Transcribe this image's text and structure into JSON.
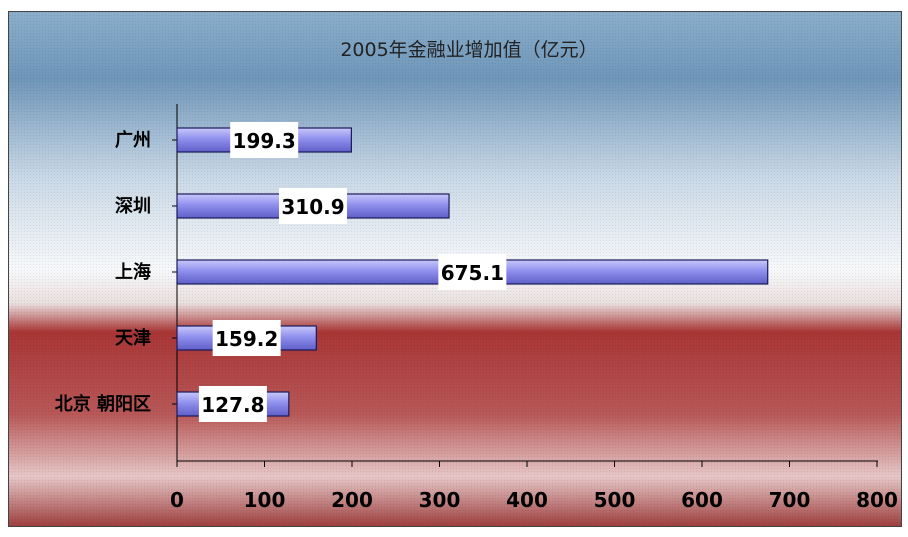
{
  "chart_data": {
    "type": "bar",
    "orientation": "horizontal",
    "title": "2005年金融业增加值（亿元）",
    "categories": [
      "广州",
      "深圳",
      "上海",
      "天津",
      "北京 朝阳区"
    ],
    "values": [
      199.3,
      310.9,
      675.1,
      159.2,
      127.8
    ],
    "data_labels": [
      "199.3",
      "310.9",
      "675.1",
      "159.2",
      "127.8"
    ],
    "xlim": [
      0,
      800
    ],
    "xticks": [
      0,
      100,
      200,
      300,
      400,
      500,
      600,
      700,
      800
    ],
    "grid": false,
    "legend": false
  },
  "colors": {
    "bar_fill": "#8c8cf0",
    "bar_stroke": "#1a1a5a",
    "bg_top": "#7fa6c6",
    "bg_mid": "#f6f8fa",
    "bg_bottom": "#a83030"
  }
}
